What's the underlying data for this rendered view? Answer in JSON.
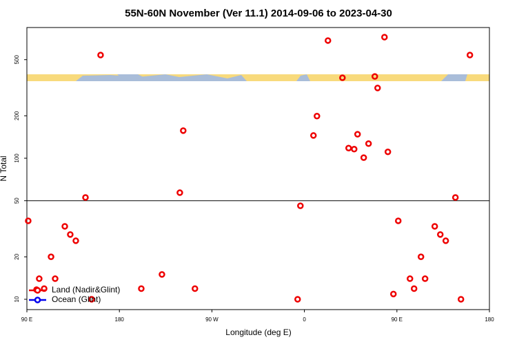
{
  "chart_data": {
    "type": "scatter",
    "title": "55N-60N November (Ver 11.1)   2014-09-06 to 2023-04-30",
    "x_label": "Longitude (deg E)",
    "y_label": "N Total",
    "xlim": [
      90,
      540
    ],
    "ylim": [
      8.45,
      845
    ],
    "log_y": true,
    "xticks": [
      {
        "value": 90,
        "label": "90 E"
      },
      180,
      {
        "value": 270,
        "label": "90 W"
      },
      {
        "value": 360,
        "label": "0"
      },
      {
        "value": 450,
        "label": "90 E"
      },
      {
        "value": 540,
        "label": "180"
      }
    ],
    "yticks": [
      10,
      20,
      50,
      100,
      200,
      500
    ],
    "hline": 50,
    "legend": "bottom-left",
    "series": [
      {
        "name": "Land (Nadir&Glint)",
        "color": "#ee0000",
        "x": [
          91.3,
          99.4,
          102,
          106.8,
          113.5,
          117.5,
          126.9,
          132.2,
          137.6,
          147,
          153,
          161.7,
          201.3,
          221.4,
          238.8,
          242.1,
          253.5,
          353.4,
          356.1,
          368.8,
          372.2,
          382.9,
          397,
          403,
          408.4,
          411.7,
          417.7,
          422.4,
          428.5,
          431.2,
          437.9,
          441.2,
          446.6,
          451.3,
          462.7,
          466.7,
          473.4,
          477.4,
          486.8,
          492.2,
          497.5,
          506.9,
          512.3,
          521
        ],
        "values": [
          36,
          11.7,
          14,
          11.9,
          20,
          14,
          32.9,
          28.8,
          26,
          52.7,
          10,
          539,
          11.9,
          15,
          57,
          157,
          11.9,
          10,
          46,
          145,
          199,
          683,
          372,
          118,
          116,
          148,
          101,
          127,
          380,
          315,
          722,
          111,
          10.9,
          36,
          14,
          11.9,
          20,
          14,
          32.9,
          28.8,
          26,
          52.7,
          10,
          539
        ]
      },
      {
        "name": "Ocean (Glint)",
        "color": "#0000ee",
        "x": [],
        "values": []
      }
    ]
  }
}
